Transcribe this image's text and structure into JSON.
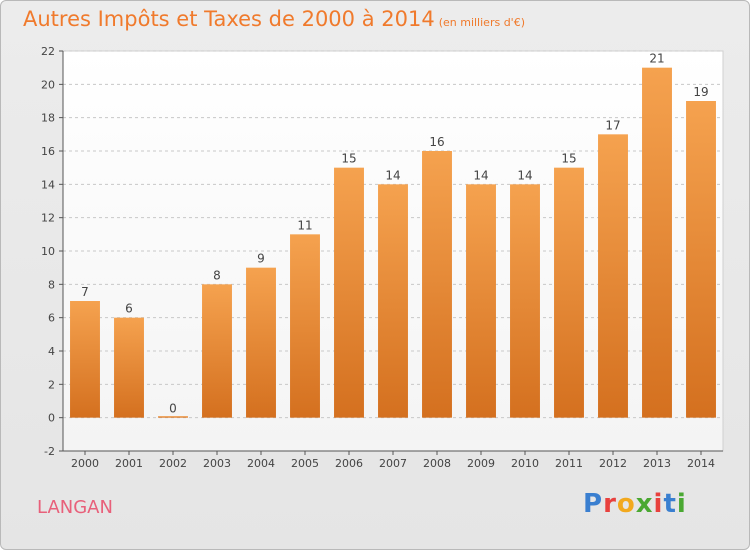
{
  "header": {
    "title": "Autres Impôts et Taxes de 2000 à 2014",
    "unit": "(en milliers d'€)"
  },
  "footer": {
    "commune": "LANGAN",
    "brand": "Proxiti"
  },
  "colors": {
    "bar_top": "#f5a24f",
    "bar_bottom": "#d4701f",
    "title": "#f07a2c",
    "commune": "#e8607a"
  },
  "chart_data": {
    "type": "bar",
    "title": "Autres Impôts et Taxes de 2000 à 2014",
    "subtitle": "(en milliers d'€)",
    "categories": [
      "2000",
      "2001",
      "2002",
      "2003",
      "2004",
      "2005",
      "2006",
      "2007",
      "2008",
      "2009",
      "2010",
      "2011",
      "2012",
      "2013",
      "2014"
    ],
    "values": [
      7,
      6,
      0,
      8,
      9,
      11,
      15,
      14,
      16,
      14,
      14,
      15,
      17,
      21,
      19
    ],
    "data_labels": [
      "7",
      "6",
      "0",
      "8",
      "9",
      "11",
      "15",
      "14",
      "16",
      "14",
      "14",
      "15",
      "17",
      "21",
      "19"
    ],
    "ylim": [
      -2,
      22
    ],
    "yticks": [
      -2,
      0,
      2,
      4,
      6,
      8,
      10,
      12,
      14,
      16,
      18,
      20,
      22
    ],
    "ytick_labels": [
      "-2",
      "0",
      "2",
      "4",
      "6",
      "8",
      "10",
      "12",
      "14",
      "16",
      "18",
      "20",
      "22"
    ],
    "grid": true,
    "xlabel": "",
    "ylabel": ""
  }
}
